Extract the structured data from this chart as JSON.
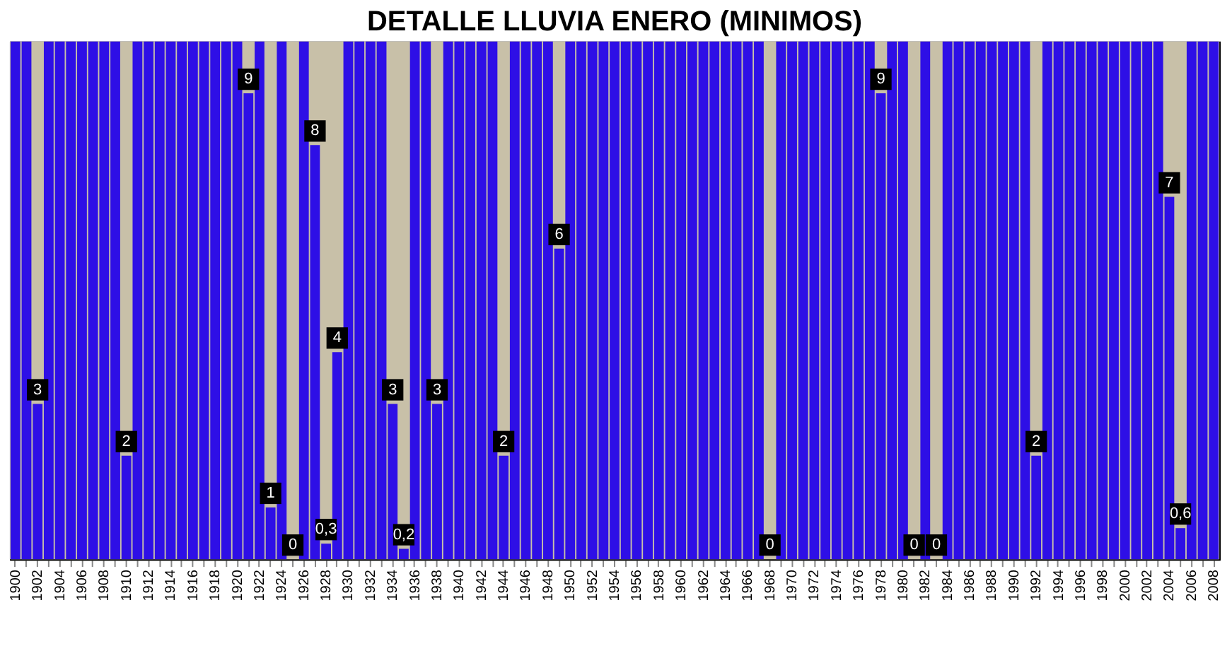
{
  "chart_data": {
    "type": "bar",
    "title": "DETALLE LLUVIA ENERO (MINIMOS)",
    "categories": [
      "1900",
      null,
      "1902",
      null,
      "1904",
      null,
      "1906",
      null,
      "1908",
      null,
      "1910",
      null,
      "1912",
      null,
      "1914",
      null,
      "1916",
      null,
      "1918",
      null,
      "1920",
      null,
      "1922",
      null,
      "1924",
      null,
      "1926",
      null,
      "1928",
      null,
      "1930",
      null,
      "1932",
      null,
      "1934",
      null,
      "1936",
      null,
      "1938",
      null,
      "1940",
      null,
      "1942",
      null,
      "1944",
      null,
      "1946",
      null,
      "1948",
      null,
      "1950",
      null,
      "1952",
      null,
      "1954",
      null,
      "1956",
      null,
      "1958",
      null,
      "1960",
      null,
      "1962",
      null,
      "1964",
      null,
      "1966",
      null,
      "1968",
      null,
      "1970",
      null,
      "1972",
      null,
      "1974",
      null,
      "1976",
      null,
      "1978",
      null,
      "1980",
      null,
      "1982",
      null,
      "1984",
      null,
      "1986",
      null,
      "1988",
      null,
      "1990",
      null,
      "1992",
      null,
      "1994",
      null,
      "1996",
      null,
      "1998",
      null,
      "2000",
      null,
      "2002",
      null,
      "2004",
      null,
      "2006",
      null,
      "2008"
    ],
    "values": [
      10,
      10,
      3,
      10,
      10,
      10,
      10,
      10,
      10,
      10,
      2,
      10,
      10,
      10,
      10,
      10,
      10,
      10,
      10,
      10,
      10,
      9,
      10,
      1,
      10,
      0,
      10,
      8,
      0.3,
      4,
      10,
      10,
      10,
      10,
      3,
      0.2,
      10,
      10,
      3,
      10,
      10,
      10,
      10,
      10,
      2,
      10,
      10,
      10,
      10,
      6,
      10,
      10,
      10,
      10,
      10,
      10,
      10,
      10,
      10,
      10,
      10,
      10,
      10,
      10,
      10,
      10,
      10,
      10,
      0,
      10,
      10,
      10,
      10,
      10,
      10,
      10,
      10,
      10,
      9,
      10,
      10,
      0,
      10,
      0,
      10,
      10,
      10,
      10,
      10,
      10,
      10,
      10,
      2,
      10,
      10,
      10,
      10,
      10,
      10,
      10,
      10,
      10,
      10,
      10,
      7,
      0.6,
      10,
      10,
      10
    ],
    "value_labels": [
      null,
      null,
      "3",
      null,
      null,
      null,
      null,
      null,
      null,
      null,
      "2",
      null,
      null,
      null,
      null,
      null,
      null,
      null,
      null,
      null,
      null,
      "9",
      null,
      "1",
      null,
      "0",
      null,
      "8",
      "0,3",
      "4",
      null,
      null,
      null,
      null,
      "3",
      "0,2",
      null,
      null,
      "3",
      null,
      null,
      null,
      null,
      null,
      "2",
      null,
      null,
      null,
      null,
      "6",
      null,
      null,
      null,
      null,
      null,
      null,
      null,
      null,
      null,
      null,
      null,
      null,
      null,
      null,
      null,
      null,
      null,
      null,
      "0",
      null,
      null,
      null,
      null,
      null,
      null,
      null,
      null,
      null,
      "9",
      null,
      null,
      "0",
      null,
      "0",
      null,
      null,
      null,
      null,
      null,
      null,
      null,
      null,
      "2",
      null,
      null,
      null,
      null,
      null,
      null,
      null,
      null,
      null,
      null,
      null,
      "7",
      "0,6",
      null,
      null,
      null
    ],
    "color": "#2e0fe6",
    "ylim": [
      0,
      10
    ],
    "tick_labels": "x",
    "grid": false,
    "bands": [
      {
        "axis": "y",
        "from": 0,
        "to": 10,
        "color": "#c8c0a8"
      }
    ]
  }
}
